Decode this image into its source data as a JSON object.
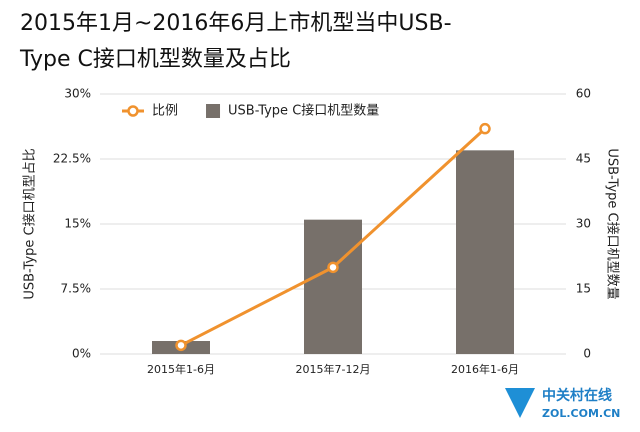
{
  "chart_data": {
    "type": "bar_line",
    "title": [
      "2015年1月~2016年6月上市机型当中USB-",
      "Type C接口机型数量及占比"
    ],
    "ylabel": "USB-Type C接口机型占比",
    "y2label": "USB-Type C接口机型数量",
    "categories": [
      "2015年1-6月",
      "2015年7-12月",
      "2016年1-6月"
    ],
    "series": [
      {
        "name": "比例",
        "type": "line",
        "axis": "y",
        "color": "#f0922e",
        "values": [
          1,
          10,
          26
        ]
      },
      {
        "name": "USB-Type C接口机型数量",
        "type": "bar",
        "axis": "y2",
        "color": "#77706a",
        "values": [
          3,
          31,
          47
        ]
      }
    ],
    "ylim": [
      0,
      30
    ],
    "yticks": [
      {
        "value": 0,
        "label": "0%"
      },
      {
        "value": 7.5,
        "label": "7.5%"
      },
      {
        "value": 15,
        "label": "15%"
      },
      {
        "value": 22.5,
        "label": "22.5%"
      },
      {
        "value": 30,
        "label": "30%"
      }
    ],
    "y2lim": [
      0,
      60
    ],
    "y2ticks": [
      0,
      15,
      30,
      45,
      60
    ],
    "grid": true,
    "legend": "top-left",
    "watermark": [
      "中关村在线",
      "ZOL.COM.CN"
    ]
  }
}
